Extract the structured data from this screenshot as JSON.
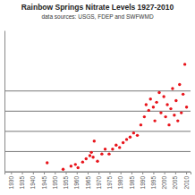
{
  "chart_data": {
    "type": "scatter",
    "title": "Rainbow Springs Nitrate Levels 1927-2010",
    "subtitle": "data sources: USGS, FDEP and SWFWMD",
    "x": [
      1946.5,
      1953.8,
      1957.4,
      1959.4,
      1960.6,
      1962.7,
      1964.3,
      1966.0,
      1966.7,
      1968.0,
      1967.5,
      1969.5,
      1971.5,
      1973.0,
      1974.8,
      1976.4,
      1978.0,
      1979.6,
      1981.2,
      1982.8,
      1984.4,
      1986.0,
      1987.7,
      1989.3,
      1990.9,
      1991.7,
      1992.9,
      1993.7,
      1995.0,
      1995.7,
      1996.5,
      1997.7,
      1998.5,
      1999.8,
      2000.6,
      2001.4,
      2002.2,
      2003.0,
      2003.8,
      2004.6,
      2005.4,
      2006.2,
      2007.0,
      2007.8,
      2008.6,
      2009.4,
      2010.2
    ],
    "values": [
      0.22,
      0.06,
      0.14,
      0.18,
      0.1,
      0.24,
      0.32,
      0.4,
      0.48,
      0.76,
      0.36,
      0.26,
      0.44,
      0.56,
      0.44,
      0.56,
      0.66,
      0.6,
      0.72,
      0.8,
      0.86,
      0.96,
      0.9,
      1.16,
      1.36,
      1.66,
      1.52,
      1.8,
      1.6,
      1.26,
      1.72,
      1.96,
      1.46,
      1.86,
      1.36,
      1.66,
      1.16,
      1.56,
      2.06,
      1.4,
      1.76,
      1.26,
      2.16,
      1.46,
      1.92,
      2.66,
      1.6
    ],
    "color": "#e8141b",
    "marker": "circle",
    "xlim": [
      1927,
      2012
    ],
    "xticks": [
      1930,
      1935,
      1940,
      1945,
      1950,
      1955,
      1960,
      1965,
      1970,
      1975,
      1980,
      1985,
      1990,
      1995,
      2000,
      2005,
      2010
    ],
    "ylim": [
      0,
      3.5
    ],
    "yticks": [
      0,
      0.5,
      1,
      1.5,
      2
    ],
    "grid": true,
    "tick_labels": "x"
  }
}
